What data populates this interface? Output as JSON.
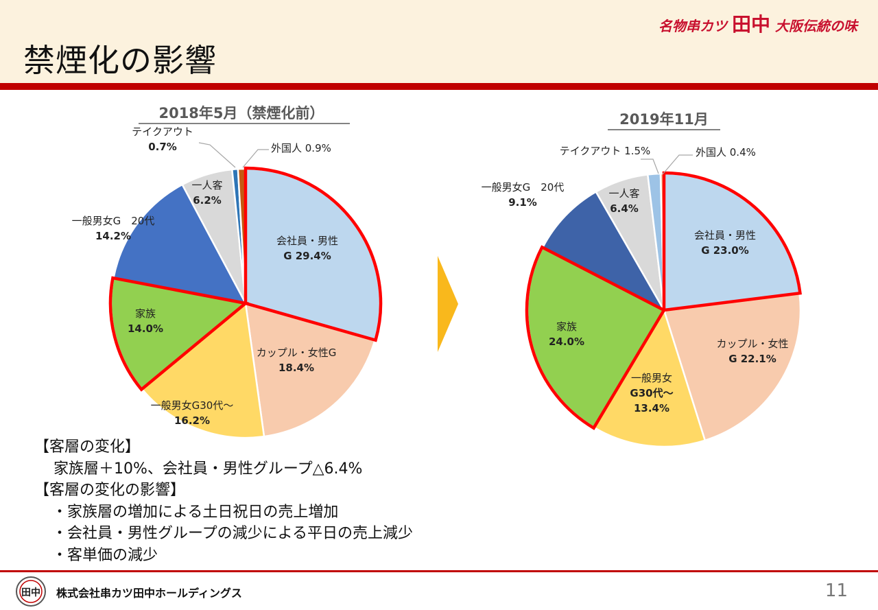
{
  "header": {
    "title": "禁煙化の影響",
    "brand_prefix": "名物串カツ",
    "brand_name": "田中",
    "brand_suffix": "大阪伝統の味"
  },
  "colors": {
    "accent": "#c00000",
    "header_bg": "#fcf2de",
    "arrow": "#f9b81c",
    "highlight": "#ff0000"
  },
  "chart_data": [
    {
      "type": "pie",
      "title": "2018年5月（禁煙化前）",
      "slices": [
        {
          "name": "会社員・男性G",
          "value": 29.4,
          "label": [
            "会社員・男性",
            "G 29.4%"
          ],
          "color": "#bdd7ee",
          "highlight": true
        },
        {
          "name": "カップル・女性G",
          "value": 18.4,
          "label": [
            "カップル・女性G",
            "18.4%"
          ],
          "color": "#f8cbad",
          "highlight": false
        },
        {
          "name": "一般男女G30代〜",
          "value": 16.2,
          "label": [
            "一般男女G30代〜",
            "16.2%"
          ],
          "color": "#ffd966",
          "highlight": false
        },
        {
          "name": "家族",
          "value": 14.0,
          "label": [
            "家族",
            "14.0%"
          ],
          "color": "#92d050",
          "highlight": true
        },
        {
          "name": "一般男女G 20代",
          "value": 14.2,
          "label": [
            "一般男女G　20代",
            "14.2%"
          ],
          "color": "#4472c4",
          "highlight": false
        },
        {
          "name": "一人客",
          "value": 6.2,
          "label": [
            "一人客",
            "6.2%"
          ],
          "color": "#d9d9d9",
          "highlight": false
        },
        {
          "name": "テイクアウト",
          "value": 0.7,
          "label": [
            "テイクアウト",
            "0.7%"
          ],
          "color": "#2e75b6",
          "highlight": false
        },
        {
          "name": "外国人",
          "value": 0.9,
          "label": [
            "外国人 0.9%"
          ],
          "color": "#c55a11",
          "highlight": false
        }
      ]
    },
    {
      "type": "pie",
      "title": "2019年11月",
      "slices": [
        {
          "name": "会社員・男性G",
          "value": 23.0,
          "label": [
            "会社員・男性",
            "G 23.0%"
          ],
          "color": "#bdd7ee",
          "highlight": true
        },
        {
          "name": "カップル・女性G",
          "value": 22.1,
          "label": [
            "カップル・女性",
            "G 22.1%"
          ],
          "color": "#f8cbad",
          "highlight": false
        },
        {
          "name": "一般男女G30代〜",
          "value": 13.4,
          "label": [
            "一般男女",
            "G30代〜",
            "13.4%"
          ],
          "color": "#ffd966",
          "highlight": false
        },
        {
          "name": "家族",
          "value": 24.0,
          "label": [
            "家族",
            "24.0%"
          ],
          "color": "#92d050",
          "highlight": true
        },
        {
          "name": "一般男女G 20代",
          "value": 9.1,
          "label": [
            "一般男女G　20代",
            "9.1%"
          ],
          "color": "#3e63a8",
          "highlight": false
        },
        {
          "name": "一人客",
          "value": 6.4,
          "label": [
            "一人客",
            "6.4%"
          ],
          "color": "#d9d9d9",
          "highlight": false
        },
        {
          "name": "テイクアウト",
          "value": 1.5,
          "label": [
            "テイクアウト 1.5%"
          ],
          "color": "#9dc3e6",
          "highlight": false
        },
        {
          "name": "外国人",
          "value": 0.4,
          "label": [
            "外国人 0.4%"
          ],
          "color": "#f4b183",
          "highlight": false
        }
      ]
    }
  ],
  "notes": {
    "heading1": "【客層の変化】",
    "line1": "家族層＋10%、会社員・男性グループ△6.4%",
    "heading2": "【客層の変化の影響】",
    "bullets": [
      "・家族層の増加による土日祝日の売上増加",
      "・会社員・男性グループの減少による平日の売上減少",
      "・客単価の減少"
    ]
  },
  "footer": {
    "company": "株式会社串カツ田中ホールディングス",
    "logo_text": "田中",
    "page_number": "11"
  }
}
